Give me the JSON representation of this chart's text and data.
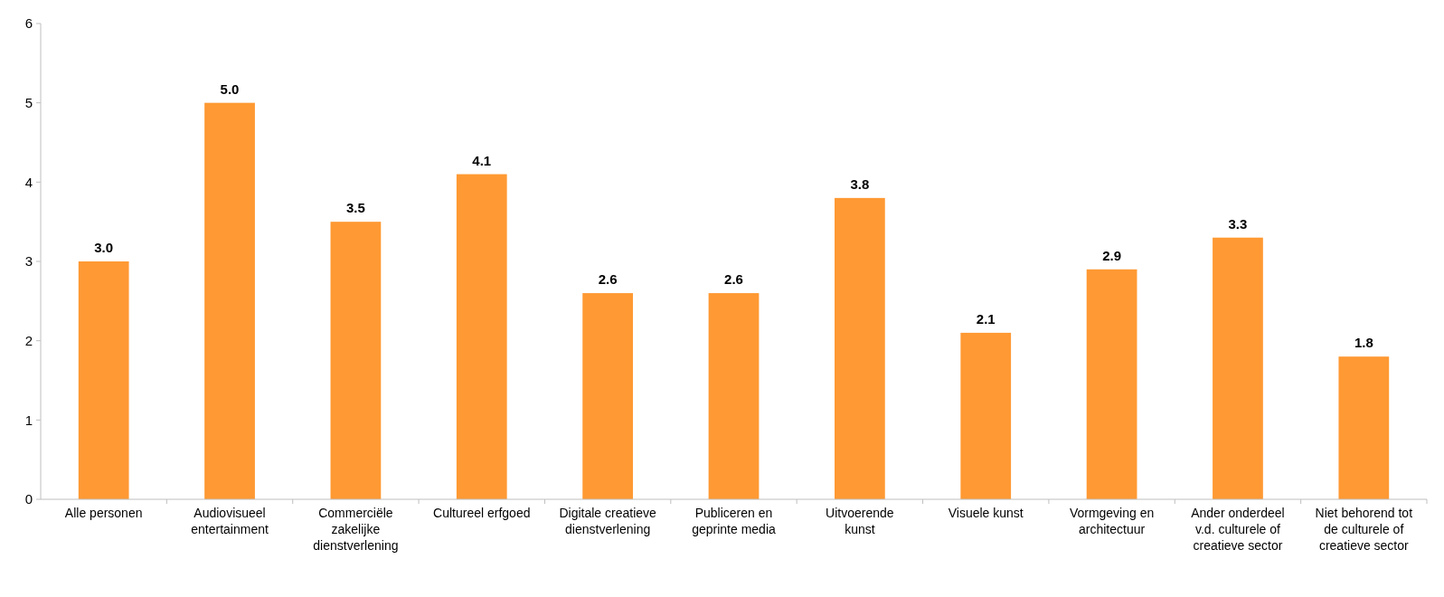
{
  "chart_data": {
    "type": "bar",
    "categories": [
      "Alle personen",
      "Audiovisueel entertainment",
      "Commerciële zakelijke dienstverlening",
      "Cultureel erfgoed",
      "Digitale creatieve dienstverlening",
      "Publiceren en geprinte media",
      "Uitvoerende kunst",
      "Visuele kunst",
      "Vormgeving en architectuur",
      "Ander onderdeel v.d. culturele of creatieve sector",
      "Niet behorend tot de culturele of creatieve sector"
    ],
    "values": [
      3.0,
      5.0,
      3.5,
      4.1,
      2.6,
      2.6,
      3.8,
      2.1,
      2.9,
      3.3,
      1.8
    ],
    "color": "#ff9933",
    "ylim": [
      0,
      6
    ],
    "yticks": [
      0,
      1,
      2,
      3,
      4,
      5,
      6
    ],
    "grid": false,
    "value_labels": [
      "3.0",
      "5.0",
      "3.5",
      "4.1",
      "2.6",
      "2.6",
      "3.8",
      "2.1",
      "2.9",
      "3.3",
      "1.8"
    ]
  }
}
